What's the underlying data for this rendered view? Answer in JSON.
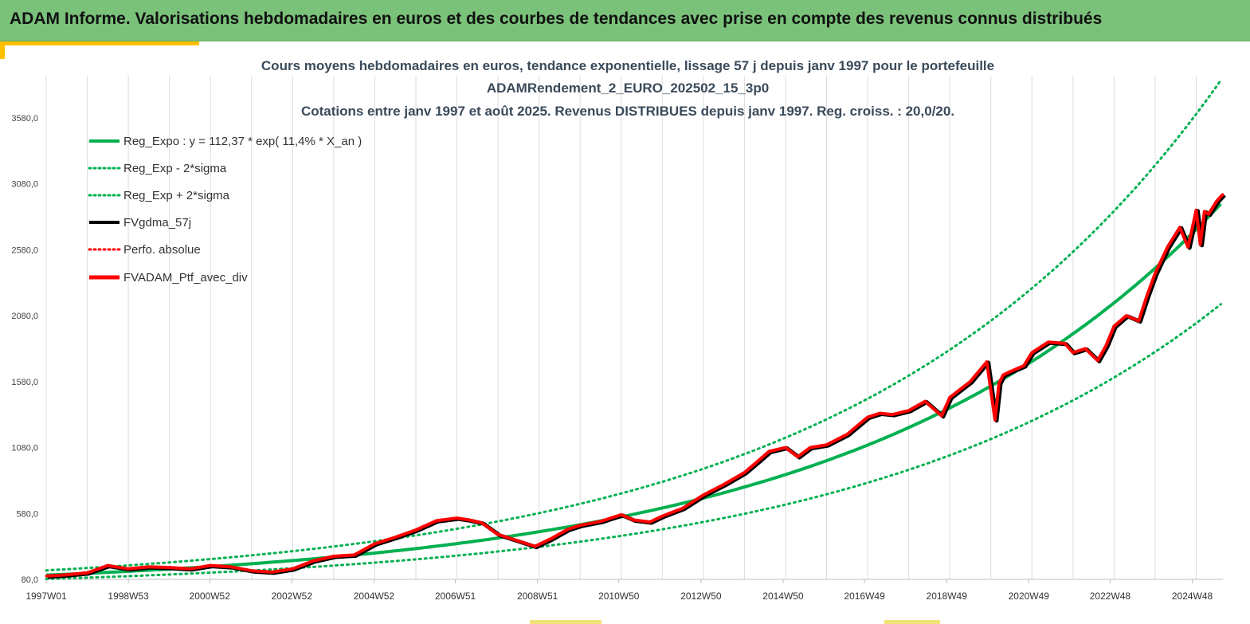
{
  "banner": {
    "title": "ADAM Informe. Valorisations hebdomadaires en euros et des courbes de tendances avec prise en compte des revenus connus distribués"
  },
  "colors": {
    "banner_bg": "#7ac17a",
    "accent": "#ffc000",
    "trend": "#00b050",
    "smoothed": "#000000",
    "price": "#ff0000"
  },
  "chart_data": {
    "type": "line",
    "title_lines": [
      "Cours moyens hebdomadaires  en euros, tendance exponentielle, lissage 57 j depuis janv 1997 pour le portefeuille",
      "ADAMRendement_2_EURO_202502_15_3p0",
      "Cotations entre janv 1997 et août 2025. Revenus DISTRIBUES depuis janv 1997. Reg. croiss. : 20,0/20."
    ],
    "xlabel": "",
    "ylabel": "",
    "ylim": [
      80,
      3900
    ],
    "y_ticks": [
      "80,0",
      "580,0",
      "1080,0",
      "1580,0",
      "2080,0",
      "2580,0",
      "3080,0",
      "3580,0"
    ],
    "x_ticks": [
      "1997W01",
      "1998W53",
      "2000W52",
      "2002W52",
      "2004W52",
      "2006W51",
      "2008W51",
      "2010W50",
      "2012W50",
      "2014W50",
      "2016W49",
      "2018W49",
      "2020W49",
      "2022W48",
      "2024W48"
    ],
    "x_range": [
      1997.0,
      2025.65
    ],
    "grid": "vertical",
    "legend_position": "top-left",
    "series": [
      {
        "name": "Reg_Expo : y = 112,37 * exp( 11,4% *  X_an )",
        "style": "solid-green",
        "formula": {
          "a": 112.37,
          "rate": 0.114
        }
      },
      {
        "name": "Reg_Exp - 2*sigma",
        "style": "dotted-green",
        "factor": 0.74
      },
      {
        "name": "Reg_Exp + 2*sigma",
        "style": "dotted-green",
        "factor": 1.32
      },
      {
        "name": "FVgdma_57j",
        "style": "solid-black"
      },
      {
        "name": "Perfo. absolue",
        "style": "dotted-red"
      },
      {
        "name": "FVADAM_Ptf_avec_div",
        "style": "solid-red",
        "x": [
          1997.0,
          1997.5,
          1998.0,
          1998.5,
          1999.0,
          1999.5,
          2000.0,
          2000.5,
          2001.0,
          2001.5,
          2002.0,
          2002.5,
          2003.0,
          2003.5,
          2004.0,
          2004.5,
          2005.0,
          2005.5,
          2006.0,
          2006.5,
          2007.0,
          2007.3,
          2007.6,
          2008.0,
          2008.5,
          2008.9,
          2009.3,
          2009.7,
          2010.0,
          2010.5,
          2011.0,
          2011.3,
          2011.7,
          2012.0,
          2012.5,
          2013.0,
          2013.5,
          2014.0,
          2014.3,
          2014.6,
          2015.0,
          2015.3,
          2015.6,
          2016.0,
          2016.5,
          2017.0,
          2017.3,
          2017.6,
          2018.0,
          2018.4,
          2018.8,
          2019.0,
          2019.5,
          2019.9,
          2020.1,
          2020.2,
          2020.3,
          2020.5,
          2020.8,
          2021.0,
          2021.4,
          2021.8,
          2022.0,
          2022.3,
          2022.6,
          2022.8,
          2023.0,
          2023.3,
          2023.6,
          2023.8,
          2024.0,
          2024.3,
          2024.6,
          2024.8,
          2025.0,
          2025.1,
          2025.2,
          2025.3,
          2025.5,
          2025.65
        ],
        "y": [
          105,
          115,
          130,
          185,
          160,
          175,
          170,
          160,
          185,
          175,
          145,
          135,
          160,
          220,
          255,
          265,
          350,
          400,
          455,
          525,
          545,
          530,
          510,
          420,
          370,
          330,
          390,
          460,
          490,
          520,
          570,
          530,
          515,
          560,
          620,
          720,
          800,
          890,
          970,
          1050,
          1080,
          1010,
          1080,
          1100,
          1180,
          1310,
          1340,
          1330,
          1360,
          1430,
          1320,
          1460,
          1580,
          1730,
          1290,
          1570,
          1630,
          1660,
          1700,
          1800,
          1880,
          1870,
          1800,
          1830,
          1740,
          1850,
          2000,
          2080,
          2040,
          2230,
          2400,
          2600,
          2750,
          2600,
          2880,
          2620,
          2870,
          2850,
          2950,
          3000
        ]
      }
    ]
  }
}
